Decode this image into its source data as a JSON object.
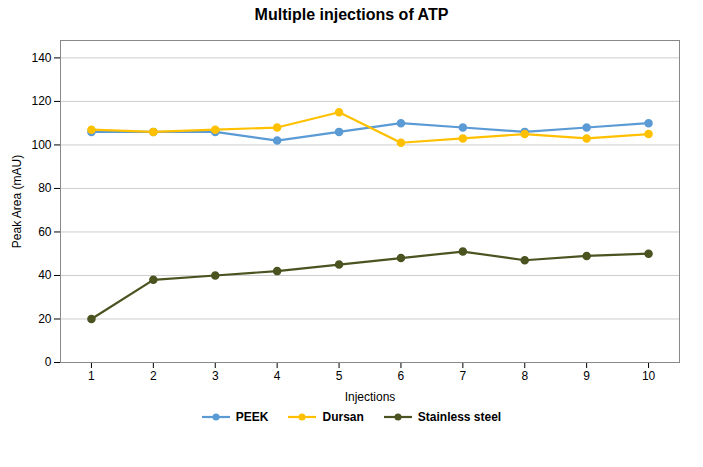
{
  "chart_data": {
    "type": "line",
    "title": "Multiple injections of ATP",
    "x_label": "Injections",
    "y_label": "Peak Area (mAU)",
    "x": [
      1,
      2,
      3,
      4,
      5,
      6,
      7,
      8,
      9,
      10
    ],
    "series": [
      {
        "name": "PEEK",
        "color": "#5B9BD5",
        "marker": "circle",
        "values": [
          106,
          106,
          106,
          102,
          106,
          110,
          108,
          106,
          108,
          110
        ]
      },
      {
        "name": "Dursan",
        "color": "#FFC000",
        "marker": "circle",
        "values": [
          107,
          106,
          107,
          108,
          115,
          101,
          103,
          105,
          103,
          105
        ]
      },
      {
        "name": "Stainless steel",
        "color": "#4B5320",
        "marker": "circle",
        "values": [
          20,
          38,
          40,
          42,
          45,
          48,
          51,
          47,
          49,
          50
        ]
      }
    ],
    "xlim": [
      0.5,
      10.5
    ],
    "xticks": [
      1,
      2,
      3,
      4,
      5,
      6,
      7,
      8,
      9,
      10
    ],
    "ylim": [
      0,
      148
    ],
    "yticks": [
      0,
      20,
      40,
      60,
      80,
      100,
      120,
      140
    ],
    "grid": true,
    "legend": "bottom"
  }
}
